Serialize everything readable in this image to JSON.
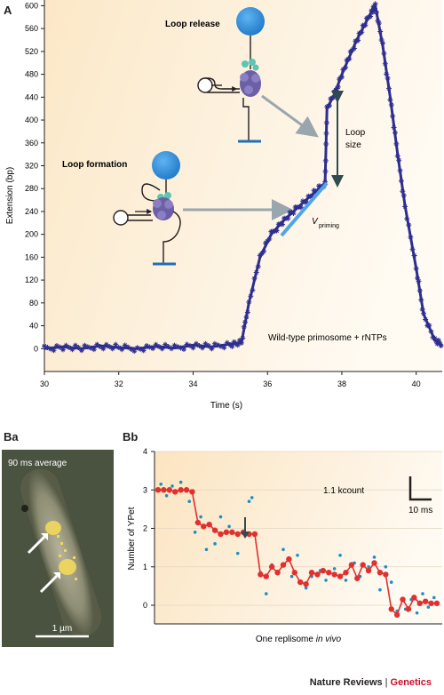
{
  "panels": {
    "a_label": "A",
    "ba_label": "Ba",
    "bb_label": "Bb"
  },
  "colors": {
    "trace": "#2d2e8f",
    "priming": "#4da6e8",
    "arrow": "#9aa6ad",
    "dark_arrow": "#2f4b4f",
    "red": "#e03030",
    "dots": "#1b8fc4",
    "sphere": "#2f8fd8",
    "protein": "#6b5fa6",
    "helicase_top": "#5fc4b4",
    "brand_red": "#c8102e"
  },
  "chart_data": [
    {
      "type": "line",
      "xlabel": "Time (s)",
      "ylabel": "Extension (bp)",
      "xlim": [
        30,
        40.7
      ],
      "ylim": [
        -40,
        610
      ],
      "xticks": [
        "30",
        "32",
        "34",
        "36",
        "38",
        "40"
      ],
      "yticks": [
        "0",
        "40",
        "80",
        "120",
        "160",
        "200",
        "240",
        "280",
        "320",
        "360",
        "400",
        "440",
        "480",
        "520",
        "560",
        "600"
      ],
      "series": [
        {
          "x": [
            30,
            30.5,
            31,
            31.5,
            32,
            32.5,
            33,
            33.5,
            34,
            34.5,
            35,
            35.3,
            35.5,
            35.8,
            36.1,
            36.4,
            36.7,
            37.0,
            37.3,
            37.55,
            37.6,
            37.8,
            38.0,
            38.2,
            38.4,
            38.6,
            38.8,
            38.9,
            39.1,
            39.3,
            39.5,
            39.7,
            40.0,
            40.2,
            40.5,
            40.7
          ],
          "y": [
            0,
            3,
            0,
            5,
            2,
            0,
            4,
            1,
            6,
            3,
            8,
            10,
            80,
            160,
            200,
            222,
            240,
            258,
            275,
            290,
            420,
            445,
            480,
            510,
            540,
            565,
            590,
            600,
            530,
            440,
            340,
            250,
            140,
            60,
            15,
            5
          ]
        }
      ],
      "annotations": {
        "loop_release": "Loop release",
        "loop_formation": "Loop formation",
        "loop_size": "Loop",
        "loop_size_2": "size",
        "v_symbol": "V",
        "v_sub": "priming",
        "condition": "Wild-type primosome + rNTPs"
      }
    },
    {
      "type": "line",
      "xlabel_pre": "One replisome ",
      "xlabel_em": "in vivo",
      "ylabel": "Number of YPet",
      "ylim": [
        -0.3,
        4
      ],
      "yticks": [
        "0",
        "1",
        "2",
        "3",
        "4"
      ],
      "scalebar_y": "1.1 kcount",
      "scalebar_x": "10 ms",
      "series": [
        {
          "name": "steps",
          "x": [
            0,
            1,
            2,
            3,
            4,
            5,
            6,
            7,
            8,
            9,
            10,
            11,
            12,
            13,
            14,
            15,
            16,
            17,
            18,
            19,
            20,
            21,
            22,
            23,
            24,
            25,
            26,
            27,
            28,
            29,
            30,
            31,
            32,
            33,
            34,
            35,
            36,
            37,
            38,
            39,
            40,
            41,
            42,
            43,
            44,
            45,
            46,
            47,
            48,
            49
          ],
          "values": [
            3,
            3,
            3,
            2.95,
            3,
            3,
            2.95,
            2.15,
            2.05,
            2.1,
            1.95,
            1.85,
            1.9,
            1.9,
            1.85,
            1.9,
            1.85,
            1.85,
            0.8,
            0.75,
            1.0,
            0.85,
            1.05,
            1.2,
            0.85,
            0.6,
            0.55,
            0.85,
            0.8,
            0.9,
            0.85,
            0.8,
            0.75,
            0.85,
            1.05,
            0.7,
            1.05,
            0.9,
            1.1,
            0.85,
            0.8,
            -0.1,
            -0.25,
            0.15,
            -0.1,
            0.2,
            0.05,
            0.1,
            0.05,
            0.05
          ]
        },
        {
          "name": "points",
          "x": [
            0.5,
            1.5,
            2.5,
            4,
            5.5,
            6.5,
            7.5,
            8.5,
            10,
            11,
            12.5,
            14,
            16,
            16.5,
            18,
            19,
            20,
            22,
            23.5,
            24.5,
            26,
            27,
            28.5,
            29.5,
            31,
            32,
            33,
            34.5,
            35.5,
            37,
            38,
            39,
            40,
            41,
            42,
            43.5,
            44.5,
            45.5,
            46.5,
            47.5,
            48.5
          ],
          "values": [
            3.15,
            2.85,
            3.1,
            3.2,
            2.7,
            1.9,
            2.3,
            1.45,
            1.6,
            2.3,
            2.05,
            1.35,
            2.7,
            2.8,
            0.85,
            0.3,
            1.05,
            1.45,
            0.75,
            1.3,
            0.45,
            0.75,
            0.9,
            0.65,
            0.95,
            1.3,
            0.65,
            1.1,
            0.75,
            1.0,
            1.25,
            0.4,
            1.0,
            0.6,
            -0.15,
            -0.1,
            0.15,
            -0.2,
            0.3,
            -0.05,
            0.2
          ]
        }
      ]
    }
  ],
  "micrograph": {
    "label": "90 ms average",
    "scale": "1 µm"
  },
  "footer": {
    "journal": "Nature Reviews",
    "separator": "|",
    "section": "Genetics"
  }
}
